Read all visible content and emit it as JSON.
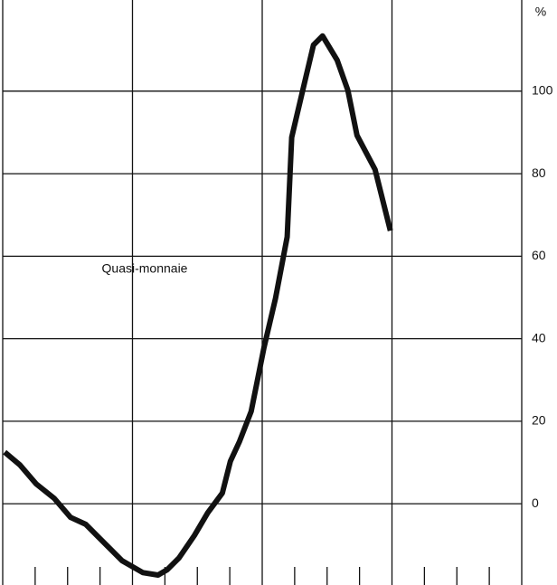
{
  "chart_data": {
    "type": "line",
    "annotations": [
      "Quasi-monnaie"
    ],
    "y_unit": "%",
    "x": [
      0.06,
      0.53,
      1.03,
      1.59,
      2.09,
      2.56,
      3.04,
      3.68,
      4.32,
      4.79,
      5.07,
      5.43,
      5.91,
      6.32,
      6.77,
      7.02,
      7.3,
      7.66,
      8.05,
      8.41,
      8.77,
      8.91,
      9.25,
      9.58,
      9.86,
      10.31,
      10.64,
      10.92,
      11.48,
      11.95
    ],
    "series": [
      {
        "color": "#111111",
        "values": [
          12.5,
          9.4,
          4.8,
          1.3,
          -3.3,
          -5,
          -8.8,
          -13.8,
          -16.7,
          -17.3,
          -16,
          -13.2,
          -7.7,
          -2.2,
          2.6,
          10.3,
          15.1,
          22.4,
          37.7,
          49.8,
          64.7,
          88.8,
          100.2,
          111.2,
          113.4,
          107.5,
          100.2,
          89.3,
          81,
          66.2
        ]
      }
    ],
    "xlim": [
      0,
      16
    ],
    "xticks": [
      0,
      1,
      2,
      3,
      4,
      5,
      6,
      7,
      8,
      9,
      10,
      11,
      12,
      13,
      14,
      15,
      16
    ],
    "ylim": [
      -19.7,
      122.1
    ],
    "yticks": [
      0,
      20,
      40,
      60,
      80,
      100
    ],
    "grid": true
  }
}
